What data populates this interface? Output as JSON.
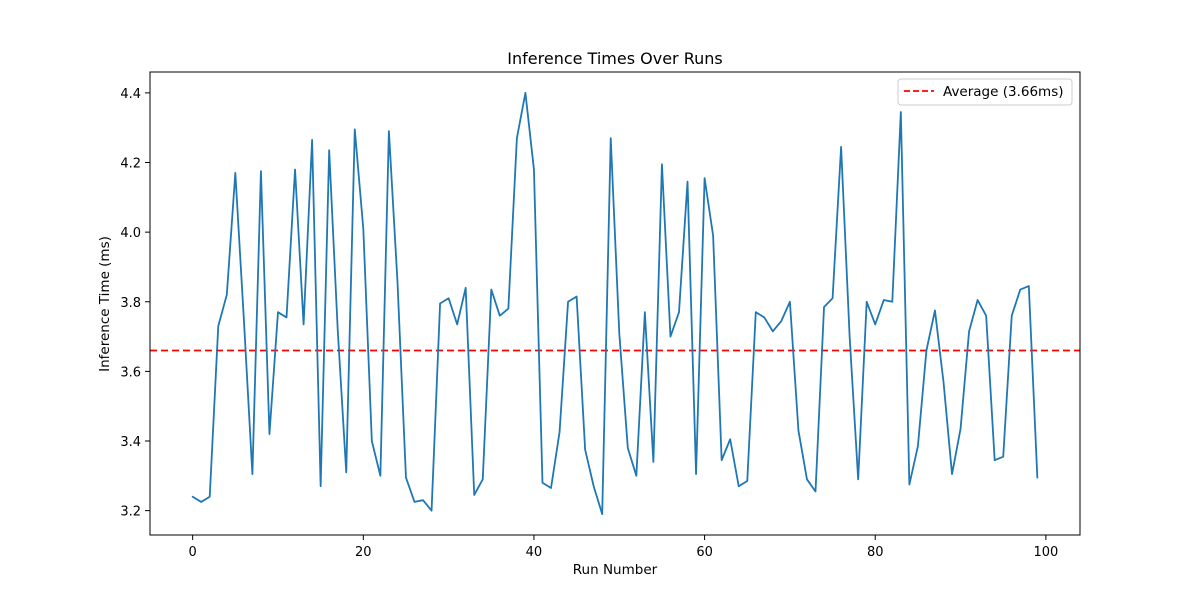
{
  "chart_data": {
    "type": "line",
    "title": "Inference Times Over Runs",
    "xlabel": "Run Number",
    "ylabel": "Inference Time (ms)",
    "xlim": [
      -5,
      104
    ],
    "ylim": [
      3.13,
      4.46
    ],
    "xticks": [
      0,
      20,
      40,
      60,
      80,
      100
    ],
    "yticks": [
      3.2,
      3.4,
      3.6,
      3.8,
      4.0,
      4.2,
      4.4
    ],
    "ytick_labels": [
      "3.2",
      "3.4",
      "3.6",
      "3.8",
      "4.0",
      "4.2",
      "4.4"
    ],
    "grid": false,
    "legend_position": "upper right",
    "series": [
      {
        "color": "#1f77b4",
        "x": [
          0,
          1,
          2,
          3,
          4,
          5,
          6,
          7,
          8,
          9,
          10,
          11,
          12,
          13,
          14,
          15,
          16,
          17,
          18,
          19,
          20,
          21,
          22,
          23,
          24,
          25,
          26,
          27,
          28,
          29,
          30,
          31,
          32,
          33,
          34,
          35,
          36,
          37,
          38,
          39,
          40,
          41,
          42,
          43,
          44,
          45,
          46,
          47,
          48,
          49,
          50,
          51,
          52,
          53,
          54,
          55,
          56,
          57,
          58,
          59,
          60,
          61,
          62,
          63,
          64,
          65,
          66,
          67,
          68,
          69,
          70,
          71,
          72,
          73,
          74,
          75,
          76,
          77,
          78,
          79,
          80,
          81,
          82,
          83,
          84,
          85,
          86,
          87,
          88,
          89,
          90,
          91,
          92,
          93,
          94,
          95,
          96,
          97,
          98,
          99
        ],
        "y": [
          3.24,
          3.225,
          3.24,
          3.73,
          3.82,
          4.17,
          3.75,
          3.305,
          4.175,
          3.42,
          3.77,
          3.755,
          4.18,
          3.735,
          4.265,
          3.27,
          4.235,
          3.72,
          3.31,
          4.295,
          4.01,
          3.4,
          3.3,
          4.29,
          3.86,
          3.295,
          3.225,
          3.23,
          3.2,
          3.795,
          3.81,
          3.735,
          3.84,
          3.245,
          3.29,
          3.835,
          3.76,
          3.78,
          4.27,
          4.4,
          4.18,
          3.28,
          3.265,
          3.425,
          3.8,
          3.815,
          3.375,
          3.27,
          3.19,
          4.27,
          3.71,
          3.38,
          3.3,
          3.77,
          3.34,
          4.195,
          3.7,
          3.77,
          4.145,
          3.305,
          4.155,
          3.99,
          3.345,
          3.405,
          3.27,
          3.285,
          3.77,
          3.755,
          3.715,
          3.745,
          3.8,
          3.43,
          3.29,
          3.255,
          3.785,
          3.81,
          4.245,
          3.7,
          3.29,
          3.8,
          3.735,
          3.805,
          3.8,
          4.345,
          3.275,
          3.385,
          3.66,
          3.775,
          3.57,
          3.305,
          3.435,
          3.715,
          3.805,
          3.76,
          3.345,
          3.355,
          3.76,
          3.835,
          3.845,
          3.295
        ]
      }
    ],
    "reference_line": {
      "value": 3.66,
      "label": "Average (3.66ms)",
      "color": "#ff0000",
      "style": "dashed"
    }
  }
}
